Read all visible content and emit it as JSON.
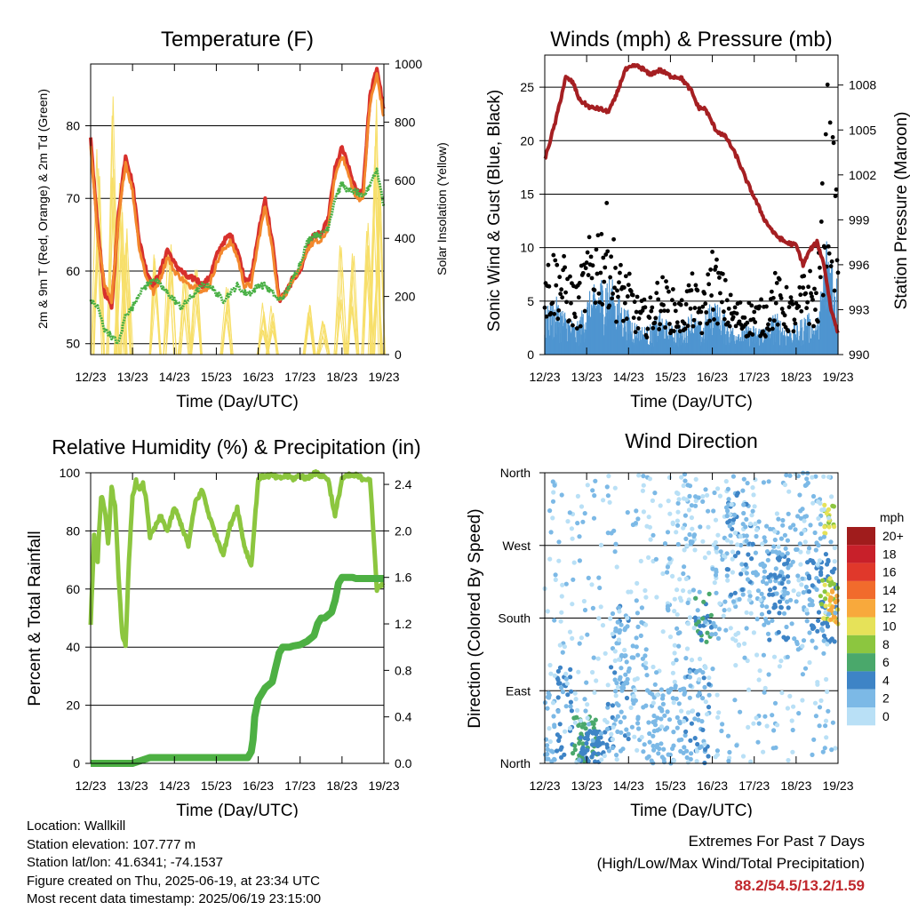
{
  "chart_data": [
    {
      "type": "line",
      "title": "Temperature (F)",
      "xlabel": "Time (Day/UTC)",
      "ylabel": "2m & 9m T (Red, Orange) & 2m Td (Green)",
      "y2label": "Solar Insolation (Yellow)",
      "x_ticks": [
        "12/23",
        "13/23",
        "14/23",
        "15/23",
        "16/23",
        "17/23",
        "18/23",
        "19/23"
      ],
      "y_ticks": [
        50,
        60,
        70,
        80
      ],
      "y2_ticks": [
        0,
        200,
        400,
        600,
        800,
        1000
      ],
      "ylim": [
        48.5,
        88.5
      ],
      "y2lim": [
        0,
        1000
      ],
      "grid": true,
      "x_hours": [
        0,
        4,
        8,
        12,
        16,
        20,
        24,
        28,
        32,
        36,
        40,
        44,
        48,
        52,
        56,
        60,
        64,
        68,
        72,
        76,
        80,
        84,
        88,
        92,
        96,
        100,
        104,
        108,
        112,
        116,
        120,
        124,
        128,
        132,
        136,
        140,
        144,
        148,
        152,
        156,
        160,
        164,
        168
      ],
      "series": [
        {
          "color": "#d7302c",
          "width": 4,
          "values": [
            78,
            66,
            57,
            55,
            68,
            76,
            72,
            64,
            60,
            58,
            60,
            63,
            61,
            60,
            59,
            59,
            58,
            59,
            62,
            64,
            65,
            63,
            59,
            59,
            65,
            70,
            64,
            56,
            57,
            59,
            60,
            63,
            65,
            65,
            67,
            74,
            77,
            74,
            71,
            71,
            84,
            88,
            82
          ]
        },
        {
          "color": "#f3882d",
          "width": 3,
          "values": [
            77,
            65,
            58,
            56,
            67,
            75,
            71,
            63,
            59,
            57,
            59,
            62,
            60,
            59,
            58,
            58,
            57,
            58,
            61,
            63,
            64,
            62,
            58,
            58,
            64,
            69,
            63,
            56,
            57,
            59,
            60,
            63,
            64,
            64,
            66,
            73,
            76,
            73,
            70,
            70,
            83,
            87,
            81
          ]
        },
        {
          "color": "#49b045",
          "width": 3,
          "dotted": true,
          "values": [
            56,
            55,
            52,
            51,
            50,
            54,
            55,
            57,
            58,
            59,
            58,
            57,
            56,
            55,
            56,
            57,
            58,
            58,
            57,
            56,
            57,
            58,
            57,
            57,
            58,
            58,
            57,
            56,
            57,
            59,
            61,
            64,
            65,
            65,
            66,
            70,
            72,
            71,
            71,
            70,
            72,
            74,
            69
          ]
        }
      ],
      "solar_peaks": [
        {
          "center": 4,
          "value": 760
        },
        {
          "center": 12.5,
          "value": 980
        },
        {
          "center": 17,
          "value": 720
        },
        {
          "center": 20.5,
          "value": 600
        },
        {
          "center": 36.5,
          "value": 420
        },
        {
          "center": 45.5,
          "value": 380
        },
        {
          "center": 54,
          "value": 310
        },
        {
          "center": 60.5,
          "value": 360
        },
        {
          "center": 78,
          "value": 320
        },
        {
          "center": 99,
          "value": 180
        },
        {
          "center": 104,
          "value": 200
        },
        {
          "center": 125,
          "value": 220
        },
        {
          "center": 133,
          "value": 120
        },
        {
          "center": 143,
          "value": 420
        },
        {
          "center": 150,
          "value": 380
        },
        {
          "center": 159,
          "value": 480
        },
        {
          "center": 162.5,
          "value": 1000
        },
        {
          "center": 165,
          "value": 700
        }
      ],
      "solar_color": "#f7df6a"
    },
    {
      "type": "line",
      "title": "Winds (mph) & Pressure (mb)",
      "xlabel": "Time (Day/UTC)",
      "ylabel": "Sonic Wind & Gust (Blue, Black)",
      "y2label": "Station Pressure (Maroon)",
      "x_ticks": [
        "12/23",
        "13/23",
        "14/23",
        "15/23",
        "16/23",
        "17/23",
        "18/23",
        "19/23"
      ],
      "y_ticks": [
        0,
        5,
        10,
        15,
        20,
        25
      ],
      "y2_ticks": [
        990,
        993,
        996,
        999,
        1002,
        1005,
        1008
      ],
      "ylim": [
        0,
        28
      ],
      "y2lim": [
        990,
        1010
      ],
      "grid": true,
      "pressure_hours": [
        0,
        6,
        12,
        16,
        20,
        26,
        32,
        36,
        40,
        46,
        52,
        56,
        60,
        66,
        72,
        78,
        84,
        88,
        92,
        98,
        104,
        110,
        116,
        120,
        126,
        132,
        138,
        144,
        148,
        152,
        156,
        160,
        164,
        168
      ],
      "pressure_values": [
        1003,
        1005.5,
        1008.5,
        1008.2,
        1007,
        1006.5,
        1006.4,
        1006.2,
        1007,
        1009,
        1009.3,
        1009.1,
        1008.7,
        1009,
        1008.6,
        1008.5,
        1007.6,
        1006.5,
        1006.4,
        1005,
        1004.5,
        1003.2,
        1001.5,
        1000.5,
        999,
        998,
        997.5,
        997.3,
        996,
        997,
        997.5,
        996,
        993,
        991.5
      ],
      "pressure_color": "#a51f22",
      "wind_color": "#4e95d0",
      "gust_color": "#000000",
      "wind_hours": [
        0,
        6,
        12,
        18,
        24,
        30,
        36,
        42,
        48,
        54,
        60,
        66,
        72,
        78,
        84,
        90,
        96,
        102,
        108,
        114,
        120,
        126,
        132,
        138,
        144,
        150,
        156,
        162,
        168
      ],
      "wind_values": [
        3,
        4,
        3,
        2,
        4,
        5,
        6,
        4,
        3,
        2,
        2,
        3,
        2,
        2,
        3,
        2,
        4,
        3,
        2,
        2,
        2,
        2,
        3,
        2,
        2,
        3,
        2,
        9,
        5
      ],
      "gust_values": [
        7,
        8,
        7,
        5,
        8,
        10,
        11,
        7,
        6,
        4,
        4,
        6,
        5,
        4,
        6,
        4,
        8,
        6,
        4,
        4,
        4,
        4,
        6,
        5,
        4,
        7,
        5,
        20,
        12
      ]
    },
    {
      "type": "line",
      "title": "Relative Humidity (%) & Precipitation (in)",
      "xlabel": "Time (Day/UTC)",
      "ylabel": "Percent & Total Rainfall",
      "x_ticks": [
        "12/23",
        "13/23",
        "14/23",
        "15/23",
        "16/23",
        "17/23",
        "18/23",
        "19/23"
      ],
      "y_ticks": [
        0,
        20,
        40,
        60,
        80,
        100
      ],
      "y2_ticks": [
        0.0,
        0.4,
        0.8,
        1.2,
        1.6,
        2.0,
        2.4
      ],
      "ylim": [
        0,
        100
      ],
      "y2lim": [
        0,
        2.5
      ],
      "grid": true,
      "rh_hours": [
        0,
        2,
        4,
        6,
        8,
        10,
        12,
        14,
        16,
        18,
        20,
        22,
        24,
        26,
        28,
        30,
        32,
        34,
        36,
        40,
        44,
        48,
        52,
        56,
        60,
        64,
        68,
        72,
        76,
        80,
        84,
        88,
        92,
        96,
        100,
        104,
        108,
        112,
        116,
        120,
        124,
        128,
        132,
        136,
        140,
        144,
        148,
        152,
        156,
        160,
        164,
        168
      ],
      "rh_values": [
        48,
        78,
        70,
        92,
        88,
        75,
        95,
        88,
        65,
        45,
        40,
        70,
        92,
        97,
        94,
        96,
        90,
        78,
        80,
        85,
        80,
        88,
        82,
        75,
        90,
        94,
        85,
        78,
        72,
        82,
        88,
        75,
        68,
        98,
        99,
        99,
        98,
        99,
        98,
        99,
        98,
        100,
        99,
        98,
        85,
        98,
        99,
        99,
        98,
        98,
        60,
        62
      ],
      "rh_color": "#8cc63f",
      "precip_hours": [
        0,
        24,
        30,
        34,
        90,
        92,
        93,
        94,
        96,
        98,
        100,
        104,
        108,
        110,
        112,
        114,
        116,
        120,
        124,
        128,
        130,
        132,
        134,
        138,
        140,
        142,
        144,
        146,
        148,
        150,
        152,
        168
      ],
      "precip_values": [
        0.0,
        0.0,
        0.03,
        0.05,
        0.05,
        0.1,
        0.2,
        0.4,
        0.55,
        0.6,
        0.65,
        0.7,
        0.95,
        1.0,
        1.0,
        1.0,
        1.01,
        1.02,
        1.05,
        1.1,
        1.2,
        1.25,
        1.25,
        1.3,
        1.4,
        1.55,
        1.6,
        1.6,
        1.6,
        1.6,
        1.59,
        1.59
      ],
      "precip_color": "#4db043"
    },
    {
      "type": "scatter",
      "title": "Wind Direction",
      "xlabel": "Time (Day/UTC)",
      "ylabel": "Direction (Colored By Speed)",
      "x_ticks": [
        "12/23",
        "13/23",
        "14/23",
        "15/23",
        "16/23",
        "17/23",
        "18/23",
        "19/23"
      ],
      "y_ticks": [
        "North",
        "East",
        "South",
        "West",
        "North"
      ],
      "ylim": [
        0,
        360
      ],
      "grid": true,
      "legend": {
        "title": "mph",
        "labels": [
          "20+",
          "18",
          "16",
          "14",
          "12",
          "10",
          "8",
          "6",
          "4",
          "2",
          "0"
        ],
        "colors": [
          "#a01c1c",
          "#c8202a",
          "#e0382b",
          "#f16b2c",
          "#f8a93c",
          "#e6e259",
          "#8cc63f",
          "#4aa86b",
          "#3e84c6",
          "#7cb9e6",
          "#b9e0f6"
        ]
      },
      "clusters": [
        {
          "x": [
            0,
            6
          ],
          "y": [
            0,
            90
          ],
          "speed": 2
        },
        {
          "x": [
            6,
            16
          ],
          "y": [
            0,
            120
          ],
          "speed": 4
        },
        {
          "x": [
            16,
            30
          ],
          "y": [
            0,
            60
          ],
          "speed": 6
        },
        {
          "x": [
            20,
            36
          ],
          "y": [
            0,
            40
          ],
          "speed": 4
        },
        {
          "x": [
            36,
            48
          ],
          "y": [
            20,
            200
          ],
          "speed": 3
        },
        {
          "x": [
            40,
            60
          ],
          "y": [
            0,
            180
          ],
          "speed": 2
        },
        {
          "x": [
            60,
            80
          ],
          "y": [
            0,
            100
          ],
          "speed": 2
        },
        {
          "x": [
            70,
            90
          ],
          "y": [
            160,
            360
          ],
          "speed": 1
        },
        {
          "x": [
            80,
            96
          ],
          "y": [
            0,
            120
          ],
          "speed": 3
        },
        {
          "x": [
            86,
            96
          ],
          "y": [
            150,
            210
          ],
          "speed": 5
        },
        {
          "x": [
            96,
            120
          ],
          "y": [
            140,
            360
          ],
          "speed": 1
        },
        {
          "x": [
            104,
            120
          ],
          "y": [
            200,
            340
          ],
          "speed": 3
        },
        {
          "x": [
            120,
            140
          ],
          "y": [
            160,
            300
          ],
          "speed": 2
        },
        {
          "x": [
            128,
            140
          ],
          "y": [
            150,
            260
          ],
          "speed": 4
        },
        {
          "x": [
            140,
            160
          ],
          "y": [
            140,
            360
          ],
          "speed": 2
        },
        {
          "x": [
            150,
            168
          ],
          "y": [
            150,
            260
          ],
          "speed": 4
        },
        {
          "x": [
            158,
            168
          ],
          "y": [
            170,
            230
          ],
          "speed": 9
        },
        {
          "x": [
            162,
            168
          ],
          "y": [
            175,
            215
          ],
          "speed": 12
        },
        {
          "x": [
            160,
            166
          ],
          "y": [
            280,
            320
          ],
          "speed": 9
        },
        {
          "x": [
            0,
            168
          ],
          "y": [
            0,
            360
          ],
          "speed": 1
        }
      ]
    }
  ],
  "info": {
    "location": "Location: Wallkill",
    "elevation": "Station elevation: 107.777 m",
    "latlon": "Station lat/lon: 41.6341; -74.1537",
    "created": "Figure created on Thu, 2025-06-19, at 23:34 UTC",
    "recent": "Most recent data timestamp: 2025/06/19 23:15:00"
  },
  "extremes": {
    "title": "Extremes For Past 7 Days",
    "subtitle": "(High/Low/Max Wind/Total Precipitation)",
    "values": "88.2/54.5/13.2/1.59"
  }
}
